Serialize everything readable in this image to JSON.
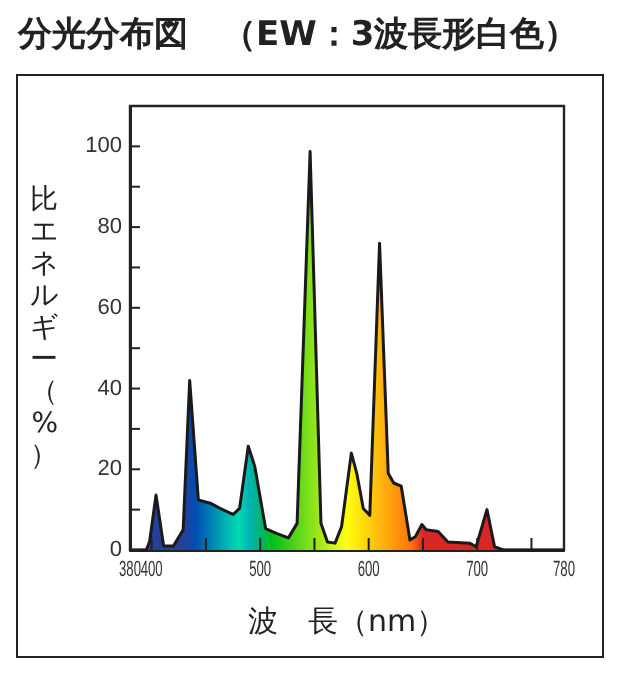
{
  "chart_data": {
    "type": "area",
    "title": "分光分布図　（EW：3波長形白色）",
    "xlabel": "波　長（nm）",
    "ylabel": "比エネルギー（%）",
    "series": [
      {
        "color": "#1a1a1a",
        "x": [
          380,
          395,
          398,
          404,
          411,
          420,
          429,
          435,
          443,
          454,
          463,
          475,
          481,
          489,
          495,
          505,
          515,
          526,
          534,
          546,
          556,
          562,
          569,
          575,
          584,
          589,
          595,
          601,
          610,
          618,
          623,
          630,
          638,
          643,
          649,
          653,
          664,
          673,
          693,
          699,
          709,
          716,
          724,
          780
        ],
        "values": [
          0,
          0,
          2,
          13.6,
          1,
          1,
          5,
          42,
          12.4,
          11.6,
          10.3,
          8.8,
          10.3,
          25.7,
          20.7,
          5.3,
          4.1,
          3,
          6.6,
          98.7,
          6.6,
          2,
          1.7,
          5.8,
          24,
          19,
          10.3,
          8.6,
          76,
          19,
          16.6,
          15.8,
          2.5,
          3.3,
          6.3,
          5,
          4.6,
          2,
          1.7,
          0.8,
          10,
          0.8,
          0,
          0
        ]
      }
    ],
    "xlim": [
      380,
      780
    ],
    "xticks": [
      380,
      400,
      {
        "value": 450,
        "label": null
      },
      500,
      {
        "value": 550,
        "label": null
      },
      600,
      {
        "value": 650,
        "label": null
      },
      700,
      {
        "value": 750,
        "label": null
      },
      780
    ],
    "ylim": [
      0,
      110
    ],
    "yticks": [
      0,
      {
        "value": 10,
        "label": null
      },
      20,
      {
        "value": 30,
        "label": null
      },
      40,
      {
        "value": 50,
        "label": null
      },
      60,
      {
        "value": 70,
        "label": null
      },
      80,
      {
        "value": 90,
        "label": null
      },
      100
    ],
    "grid": false,
    "marker": "none",
    "line_style": "solid"
  }
}
